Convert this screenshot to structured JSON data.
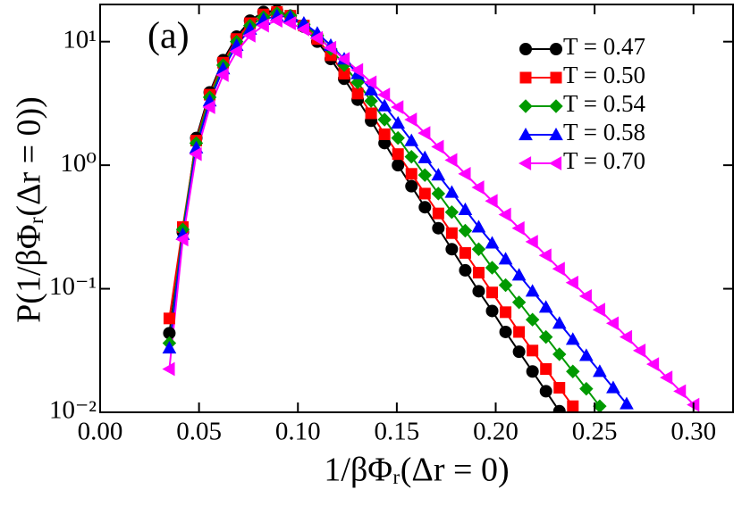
{
  "chart_data": {
    "type": "line",
    "annotation": "(a)",
    "x_label": "1/βΦᵣ(Δr = 0)",
    "y_label": "P(1/βΦᵣ(Δr = 0))",
    "log_y": true,
    "legend": "upper right",
    "xlim": [
      0,
      0.32
    ],
    "xticks": [
      {
        "value": 0,
        "label": "0.00"
      },
      0.05,
      {
        "value": 0.1,
        "label": "0.10"
      },
      0.15,
      {
        "value": 0.2,
        "label": "0.20"
      },
      0.25,
      {
        "value": 0.3,
        "label": "0.30"
      }
    ],
    "ylim": [
      0.01,
      20
    ],
    "yticks": [
      {
        "value": 0.01,
        "label": "10⁻²"
      },
      {
        "value": 0.1,
        "label": "10⁻¹"
      },
      {
        "value": 1,
        "label": "10⁰"
      },
      {
        "value": 10,
        "label": "10¹"
      }
    ],
    "series": [
      {
        "name": "T = 0.47",
        "color": "#000000",
        "marker": "circle",
        "x": [
          0.035,
          0.0418,
          0.0486,
          0.0554,
          0.0622,
          0.069,
          0.0758,
          0.0826,
          0.0894,
          0.0962,
          0.103,
          0.1098,
          0.1166,
          0.1234,
          0.1302,
          0.137,
          0.1438,
          0.1506,
          0.1574,
          0.1642,
          0.171,
          0.1778,
          0.1846,
          0.1914,
          0.1982,
          0.205,
          0.2118,
          0.2186,
          0.2254,
          0.2322
        ],
        "values": [
          0.0437,
          0.288,
          1.66,
          3.89,
          7.08,
          11.0,
          14.8,
          17.4,
          17.8,
          16.2,
          13.2,
          10.0,
          7.24,
          5.01,
          3.39,
          2.29,
          1.51,
          1.0,
          0.676,
          0.457,
          0.309,
          0.209,
          0.141,
          0.0955,
          0.0661,
          0.0447,
          0.0309,
          0.0214,
          0.0148,
          0.0102
        ]
      },
      {
        "name": "T = 0.50",
        "color": "#ff0000",
        "marker": "square",
        "x": [
          0.035,
          0.0418,
          0.0486,
          0.0554,
          0.0622,
          0.069,
          0.0758,
          0.0826,
          0.0894,
          0.0962,
          0.103,
          0.1098,
          0.1166,
          0.1234,
          0.1302,
          0.137,
          0.1438,
          0.1506,
          0.1574,
          0.1642,
          0.171,
          0.1778,
          0.1846,
          0.1914,
          0.1982,
          0.205,
          0.2118,
          0.2186,
          0.2254,
          0.2322,
          0.239
        ],
        "values": [
          0.0575,
          0.316,
          1.58,
          3.72,
          6.76,
          10.5,
          14.1,
          16.6,
          17.4,
          16.2,
          13.5,
          10.5,
          7.76,
          5.5,
          3.8,
          2.63,
          1.78,
          1.23,
          0.851,
          0.589,
          0.407,
          0.282,
          0.195,
          0.135,
          0.0933,
          0.0646,
          0.0447,
          0.0316,
          0.0224,
          0.0158,
          0.0112
        ]
      },
      {
        "name": "T = 0.54",
        "color": "#009a00",
        "marker": "diamond",
        "x": [
          0.035,
          0.0418,
          0.0486,
          0.0554,
          0.0622,
          0.069,
          0.0758,
          0.0826,
          0.0894,
          0.0962,
          0.103,
          0.1098,
          0.1166,
          0.1234,
          0.1302,
          0.137,
          0.1438,
          0.1506,
          0.1574,
          0.1642,
          0.171,
          0.1778,
          0.1846,
          0.1914,
          0.1982,
          0.205,
          0.2118,
          0.2186,
          0.2254,
          0.2322,
          0.239,
          0.2458,
          0.2526
        ],
        "values": [
          0.0363,
          0.302,
          1.51,
          3.55,
          6.46,
          10.0,
          13.5,
          15.8,
          17.0,
          16.2,
          13.8,
          11.2,
          8.71,
          6.46,
          4.68,
          3.31,
          2.34,
          1.66,
          1.17,
          0.832,
          0.589,
          0.417,
          0.295,
          0.209,
          0.148,
          0.107,
          0.0776,
          0.0562,
          0.0407,
          0.0295,
          0.0214,
          0.0155,
          0.0112
        ]
      },
      {
        "name": "T = 0.58",
        "color": "#0000ff",
        "marker": "triangle-up",
        "x": [
          0.035,
          0.0418,
          0.0486,
          0.0554,
          0.0622,
          0.069,
          0.0758,
          0.0826,
          0.0894,
          0.0962,
          0.103,
          0.1098,
          0.1166,
          0.1234,
          0.1302,
          0.137,
          0.1438,
          0.1506,
          0.1574,
          0.1642,
          0.171,
          0.1778,
          0.1846,
          0.1914,
          0.1982,
          0.205,
          0.2118,
          0.2186,
          0.2254,
          0.2322,
          0.239,
          0.2458,
          0.2526,
          0.2594,
          0.2662
        ],
        "values": [
          0.0331,
          0.275,
          1.38,
          3.31,
          6.03,
          9.33,
          12.6,
          15.1,
          16.2,
          15.8,
          14.1,
          11.7,
          9.33,
          7.24,
          5.5,
          4.07,
          3.02,
          2.19,
          1.58,
          1.15,
          0.832,
          0.603,
          0.437,
          0.316,
          0.234,
          0.174,
          0.129,
          0.0955,
          0.0708,
          0.0525,
          0.0389,
          0.0288,
          0.0214,
          0.0158,
          0.0117
        ]
      },
      {
        "name": "T = 0.70",
        "color": "#ff00ff",
        "marker": "triangle-left",
        "x": [
          0.035,
          0.0418,
          0.0486,
          0.0554,
          0.0622,
          0.069,
          0.0758,
          0.0826,
          0.0894,
          0.0962,
          0.103,
          0.1098,
          0.1166,
          0.1234,
          0.1302,
          0.137,
          0.1438,
          0.1506,
          0.1574,
          0.1642,
          0.171,
          0.1778,
          0.1846,
          0.1914,
          0.1982,
          0.205,
          0.2118,
          0.2186,
          0.2254,
          0.2322,
          0.239,
          0.2458,
          0.2526,
          0.2594,
          0.2662,
          0.273,
          0.2798,
          0.2866,
          0.2934,
          0.3002
        ],
        "values": [
          0.0224,
          0.251,
          1.23,
          2.95,
          5.37,
          8.32,
          11.2,
          13.5,
          14.8,
          14.1,
          12.6,
          10.7,
          8.91,
          7.24,
          5.89,
          4.68,
          3.72,
          2.95,
          2.34,
          1.82,
          1.41,
          1.1,
          0.851,
          0.661,
          0.513,
          0.398,
          0.309,
          0.24,
          0.186,
          0.145,
          0.112,
          0.0871,
          0.0676,
          0.0525,
          0.0407,
          0.0316,
          0.0245,
          0.0191,
          0.0148,
          0.0115
        ]
      }
    ]
  }
}
